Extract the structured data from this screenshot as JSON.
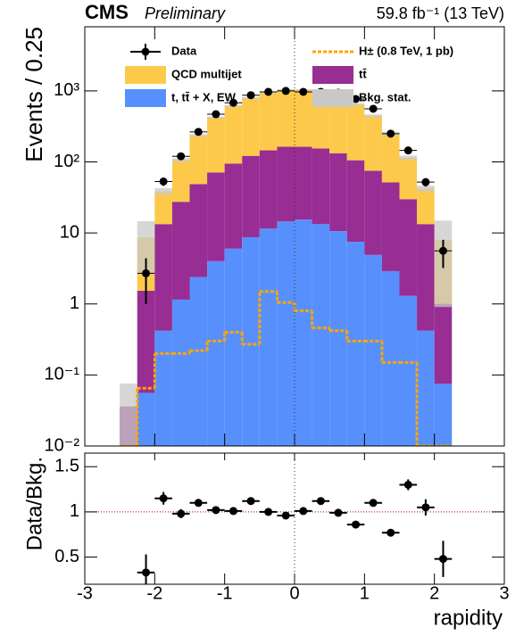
{
  "chart_data": [
    {
      "type": "histogram_stack",
      "header": {
        "experiment": "CMS",
        "status": "Preliminary",
        "luminosity": "59.8 fb⁻¹ (13 TeV)"
      },
      "ylabel": "Events / 0.25",
      "bins": [
        -2.5,
        -2.25,
        -2.0,
        -1.75,
        -1.5,
        -1.25,
        -1.0,
        -0.75,
        -0.5,
        -0.25,
        0.0,
        0.25,
        0.5,
        0.75,
        1.0,
        1.25,
        1.5,
        1.75,
        2.0,
        2.25
      ],
      "series": [
        {
          "name": "t, tt̄ + X, EW",
          "color": "#5790fc",
          "values": [
            0,
            0.056,
            0.42,
            1.15,
            2.4,
            4.0,
            6.0,
            8.7,
            11.5,
            14.5,
            15.4,
            13.3,
            10.6,
            7.5,
            4.9,
            2.9,
            1.3,
            0.42,
            0.075
          ]
        },
        {
          "name": "tt̄",
          "color": "#982d94",
          "values": [
            0.036,
            1.48,
            12.9,
            26.3,
            46.3,
            66.8,
            88.4,
            113,
            134,
            149,
            148,
            141,
            122,
            98,
            70,
            48.7,
            28.6,
            12.9,
            0.93
          ]
        },
        {
          "name": "QCD multijet",
          "color": "#fdc94b",
          "values": [
            0,
            7.1,
            25.4,
            79,
            188,
            351,
            519,
            672,
            799,
            866,
            866,
            818,
            733,
            543,
            372,
            199,
            85,
            29,
            6.9
          ]
        }
      ],
      "uncertainty": {
        "name": "Bkg. stat.",
        "color": "#c8c8c8",
        "values": [
          0.04,
          6,
          4,
          6,
          10,
          15,
          20,
          25,
          30,
          30,
          30,
          30,
          30,
          25,
          20,
          15,
          8,
          4,
          7
        ]
      },
      "signal": {
        "name": "H± (0.8 TeV, 1 pb)",
        "color": "#ffa500",
        "values": [
          0,
          0.065,
          0.2,
          0.2,
          0.22,
          0.3,
          0.4,
          0.27,
          1.5,
          1.05,
          0.8,
          0.46,
          0.42,
          0.3,
          0.3,
          0.15,
          0.15,
          0,
          0
        ]
      },
      "data": {
        "name": "Data",
        "color": "#000000",
        "x": [
          -2.125,
          -1.875,
          -1.625,
          -1.375,
          -1.125,
          -0.875,
          -0.625,
          -0.375,
          -0.125,
          0.125,
          0.375,
          0.625,
          0.875,
          1.125,
          1.375,
          1.625,
          1.875,
          2.125
        ],
        "values": [
          2.7,
          53,
          120,
          265,
          470,
          680,
          870,
          970,
          1000,
          970,
          970,
          940,
          770,
          560,
          250,
          145,
          52,
          5.6
        ],
        "yerr": [
          1.7,
          7,
          11,
          16,
          22,
          26,
          30,
          31,
          32,
          31,
          31,
          31,
          28,
          24,
          16,
          12,
          7,
          2.4
        ]
      },
      "log_y": true,
      "xlim": [
        -3,
        3
      ],
      "xticks": [
        -3,
        -2,
        -1,
        0,
        1,
        2,
        3
      ],
      "ylim": [
        0.01,
        8000
      ],
      "yticks": [
        {
          "value": 0.01,
          "label": "10⁻²"
        },
        {
          "value": 0.1,
          "label": "10⁻¹"
        },
        1,
        10,
        {
          "value": 100,
          "label": "10²"
        },
        {
          "value": 1000,
          "label": "10³"
        }
      ]
    },
    {
      "type": "ratio",
      "ylabel": "Data/Bkg.",
      "xlabel": "rapidity",
      "color": "#000000",
      "x": [
        -2.125,
        -1.875,
        -1.625,
        -1.375,
        -1.125,
        -0.875,
        -0.625,
        -0.375,
        -0.125,
        0.125,
        0.375,
        0.625,
        0.875,
        1.125,
        1.375,
        1.625,
        1.875,
        2.125
      ],
      "values": [
        0.33,
        1.15,
        0.98,
        1.1,
        1.02,
        1.01,
        1.12,
        1.0,
        0.96,
        1.01,
        1.12,
        0.99,
        0.86,
        1.1,
        0.77,
        1.3,
        1.05,
        0.48
      ],
      "yerr": [
        0.2,
        0.07,
        0.05,
        0.04,
        0.03,
        0.03,
        0.03,
        0.03,
        0.03,
        0.03,
        0.03,
        0.03,
        0.03,
        0.04,
        0.04,
        0.06,
        0.09,
        0.2
      ],
      "reference": 1,
      "xlim": [
        -3,
        3
      ],
      "xticks": [
        -3,
        -2,
        -1,
        0,
        1,
        2,
        3
      ],
      "ylim": [
        0.2,
        1.65
      ],
      "yticks": [
        0.5,
        1,
        1.5
      ]
    }
  ]
}
